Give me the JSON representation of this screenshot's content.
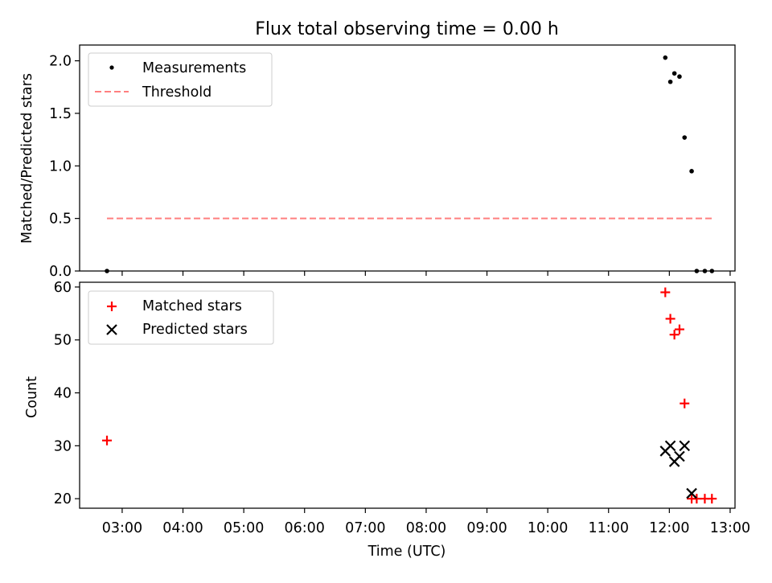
{
  "chart_data": [
    {
      "type": "scatter",
      "title": "Flux total observing time = 0.00 h",
      "xlabel": "",
      "ylabel": "Matched/Predicted stars",
      "xlim_hours": [
        2.3,
        13.08
      ],
      "ylim": [
        0.0,
        2.15
      ],
      "yticks": [
        0.0,
        0.5,
        1.0,
        1.5,
        2.0
      ],
      "ytick_labels": [
        "0.0",
        "0.5",
        "1.0",
        "1.5",
        "2.0"
      ],
      "grid": false,
      "legend_position": "top-left",
      "series": [
        {
          "name": "Measurements",
          "marker": "dot",
          "color": "#000000",
          "x": [
            "02:45",
            "11:56",
            "12:01",
            "12:05",
            "12:10",
            "12:15",
            "12:22",
            "12:27",
            "12:35",
            "12:42"
          ],
          "y": [
            0.0,
            2.03,
            1.8,
            1.88,
            1.85,
            1.27,
            0.95,
            0.0,
            0.0,
            0.0
          ]
        },
        {
          "name": "Threshold",
          "marker": "dashed-line",
          "color": "#ff7f7f",
          "x": [
            "02:45",
            "12:42"
          ],
          "y": [
            0.5,
            0.5
          ]
        }
      ]
    },
    {
      "type": "scatter",
      "title": "",
      "xlabel": "Time (UTC)",
      "ylabel": "Count",
      "xlim_hours": [
        2.3,
        13.08
      ],
      "ylim": [
        18.2,
        60.9
      ],
      "yticks": [
        20,
        30,
        40,
        50,
        60
      ],
      "ytick_labels": [
        "20",
        "30",
        "40",
        "50",
        "60"
      ],
      "xticks_hours": [
        3,
        4,
        5,
        6,
        7,
        8,
        9,
        10,
        11,
        12,
        13
      ],
      "xtick_labels": [
        "03:00",
        "04:00",
        "05:00",
        "06:00",
        "07:00",
        "08:00",
        "09:00",
        "10:00",
        "11:00",
        "12:00",
        "13:00"
      ],
      "grid": false,
      "legend_position": "top-left",
      "series": [
        {
          "name": "Matched stars",
          "marker": "plus",
          "color": "#ff0000",
          "x": [
            "02:45",
            "11:56",
            "12:01",
            "12:05",
            "12:10",
            "12:15",
            "12:22",
            "12:27",
            "12:35",
            "12:42"
          ],
          "y": [
            31,
            59,
            54,
            51,
            52,
            38,
            20,
            20,
            20,
            20
          ]
        },
        {
          "name": "Predicted stars",
          "marker": "x",
          "color": "#000000",
          "x": [
            "11:56",
            "12:01",
            "12:05",
            "12:10",
            "12:15",
            "12:22"
          ],
          "y": [
            29,
            30,
            27,
            28,
            30,
            21
          ]
        }
      ]
    }
  ]
}
